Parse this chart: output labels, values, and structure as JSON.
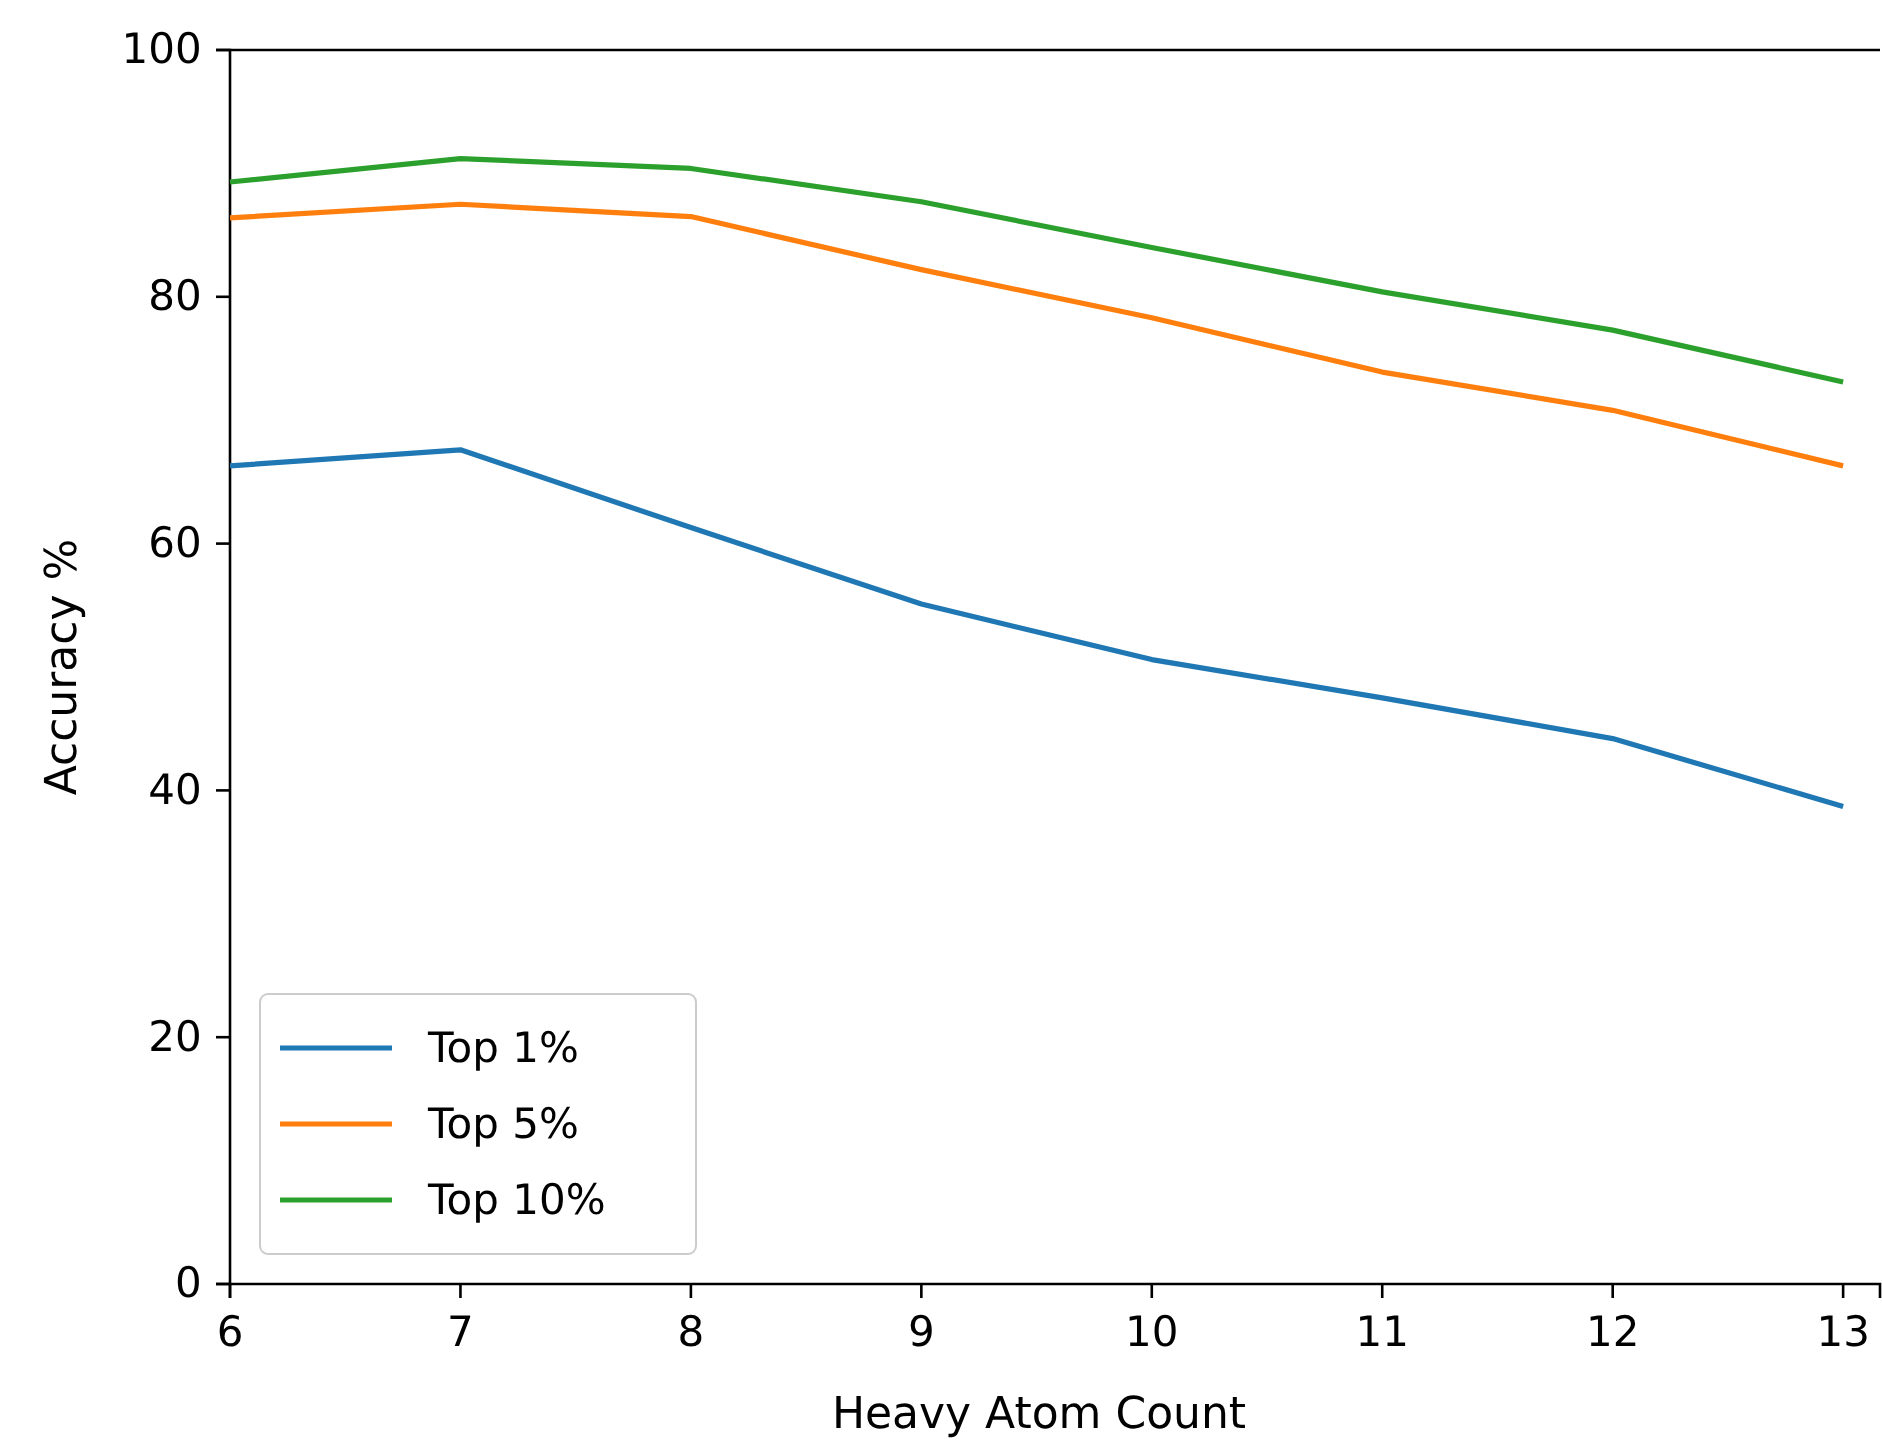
{
  "chart_data": {
    "type": "line",
    "xlabel": "Heavy Atom Count",
    "ylabel": "Accuracy %",
    "x": [
      6,
      7,
      8,
      9,
      10,
      11,
      12,
      13
    ],
    "xlim": [
      6,
      13.16
    ],
    "xticks": [
      6,
      7,
      8,
      9,
      10,
      11,
      12,
      13
    ],
    "ylim": [
      0,
      100
    ],
    "yticks": [
      0,
      20,
      40,
      60,
      80,
      100
    ],
    "grid": false,
    "legend": "bottom left",
    "marker": "none",
    "line_style": "solid",
    "series": [
      {
        "name": "Top 1%",
        "color": "#1f77b4",
        "values": [
          66.3,
          67.6,
          61.3,
          55.1,
          50.6,
          47.5,
          44.2,
          38.7
        ]
      },
      {
        "name": "Top 5%",
        "color": "#ff7f0e",
        "values": [
          86.4,
          87.5,
          86.5,
          82.2,
          78.3,
          73.9,
          70.8,
          66.3
        ]
      },
      {
        "name": "Top 10%",
        "color": "#2ca02c",
        "values": [
          89.3,
          91.2,
          90.4,
          87.7,
          84.0,
          80.4,
          77.3,
          73.1
        ]
      }
    ]
  }
}
